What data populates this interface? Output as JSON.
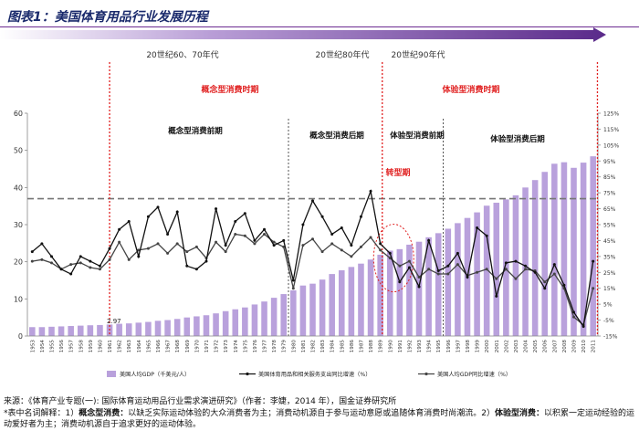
{
  "figure": {
    "title": "图表1：美国体育用品行业发展历程",
    "footer": {
      "source": "来源：《体育产业专题(一): 国际体育运动用品行业需求演进研究》（作者：李婕，2014 年），国金证券研究所",
      "note_prefix": "*表中名词解释：1）",
      "term1": "概念型消费：",
      "desc1": "以缺乏实际运动体验的大众消费者为主；消费动机源自于参与运动意愿或追随体育消费时尚潮流。2）",
      "term2": "体验型消费：",
      "desc2": "以积累一定运动经验的运动爱好者为主；消费动机源自于追求更好的运动体验。"
    }
  },
  "colors": {
    "title": "#1a2a6c",
    "arrow": "#6b2c91",
    "bars": "#b9a1dc",
    "period_line": "#e02020",
    "avg_line": "#777777",
    "phase_line": "#555555",
    "series_line": "#111111",
    "series2_line": "#444444"
  },
  "chart_data": {
    "type": "bar",
    "era_labels": [
      "20世纪60、70年代",
      "20世纪80年代",
      "20世纪90年代"
    ],
    "period_labels": [
      "概念型消费时期",
      "体验型消费时期"
    ],
    "phase_labels": [
      "概念型消费前期",
      "概念型消费后期",
      "体验型消费前期",
      "体验型消费后期"
    ],
    "transition_label": "转型期",
    "first_value_label": "2.97",
    "categories": [
      "1953",
      "1954",
      "1955",
      "1956",
      "1957",
      "1958",
      "1959",
      "1960",
      "1961",
      "1962",
      "1963",
      "1964",
      "1965",
      "1966",
      "1967",
      "1968",
      "1969",
      "1970",
      "1971",
      "1972",
      "1973",
      "1974",
      "1975",
      "1976",
      "1977",
      "1978",
      "1979",
      "1980",
      "1981",
      "1982",
      "1983",
      "1984",
      "1985",
      "1986",
      "1987",
      "1988",
      "1989",
      "1990",
      "1991",
      "1992",
      "1993",
      "1994",
      "1995",
      "1996",
      "1997",
      "1998",
      "1999",
      "2000",
      "2001",
      "2002",
      "2003",
      "2004",
      "2005",
      "2006",
      "2007",
      "2008",
      "2009",
      "2010",
      "2011"
    ],
    "ylim_left": [
      0,
      60
    ],
    "yticks_left": [
      "0",
      "10",
      "20",
      "30",
      "40",
      "50",
      "60"
    ],
    "ylim_right": [
      -15,
      125
    ],
    "yticks_right": [
      "125%",
      "115%",
      "105%",
      "95%",
      "85%",
      "75%",
      "65%",
      "55%",
      "45%",
      "35%",
      "25%",
      "15%",
      "5%",
      "-5%",
      "-15%"
    ],
    "avg_line_value": 37,
    "series": [
      {
        "name": "美国人均GDP（千美元/人）",
        "type": "bar",
        "axis": "left",
        "values": [
          2.4,
          2.4,
          2.5,
          2.6,
          2.7,
          2.8,
          2.9,
          2.97,
          3.1,
          3.3,
          3.4,
          3.6,
          3.8,
          4.1,
          4.3,
          4.6,
          5.0,
          5.3,
          5.6,
          6.1,
          6.7,
          7.2,
          7.7,
          8.5,
          9.3,
          10.3,
          11.3,
          12.3,
          13.6,
          14.1,
          15.2,
          16.7,
          17.7,
          18.6,
          19.5,
          20.6,
          21.9,
          23.0,
          23.4,
          24.6,
          25.4,
          26.6,
          27.7,
          28.9,
          30.4,
          31.8,
          33.3,
          35.1,
          35.9,
          36.8,
          37.9,
          40.0,
          42.0,
          44.2,
          46.4,
          46.8,
          45.3,
          46.7,
          48.4
        ]
      },
      {
        "name": "美国体育用品和相关服务支出同比增速（%）",
        "type": "line",
        "axis": "right",
        "values": [
          38,
          43,
          35,
          27,
          24,
          35,
          32,
          29,
          40,
          52,
          57,
          35,
          60,
          66,
          49,
          63,
          29,
          27,
          32,
          65,
          42,
          57,
          62,
          45,
          52,
          42,
          45,
          20,
          55,
          70,
          60,
          49,
          53,
          42,
          60,
          76,
          43,
          37,
          19,
          28,
          16,
          45,
          26,
          29,
          37,
          22,
          53,
          48,
          10,
          31,
          32,
          29,
          25,
          15,
          30,
          17,
          0,
          -9,
          32
        ]
      },
      {
        "name": "美国人均GDP同比增速（%）",
        "type": "line",
        "axis": "right",
        "values": [
          32,
          33,
          31,
          27,
          30,
          31,
          28,
          27,
          33,
          44,
          33,
          39,
          40,
          43,
          37,
          43,
          38,
          41,
          34,
          44,
          38,
          49,
          48,
          43,
          49,
          44,
          41,
          15,
          42,
          46,
          38,
          43,
          39,
          35,
          41,
          47,
          39,
          34,
          29,
          32,
          22,
          27,
          24,
          24,
          30,
          23,
          25,
          27,
          21,
          27,
          21,
          27,
          26,
          19,
          24,
          15,
          -3,
          -8,
          15
        ]
      }
    ]
  }
}
